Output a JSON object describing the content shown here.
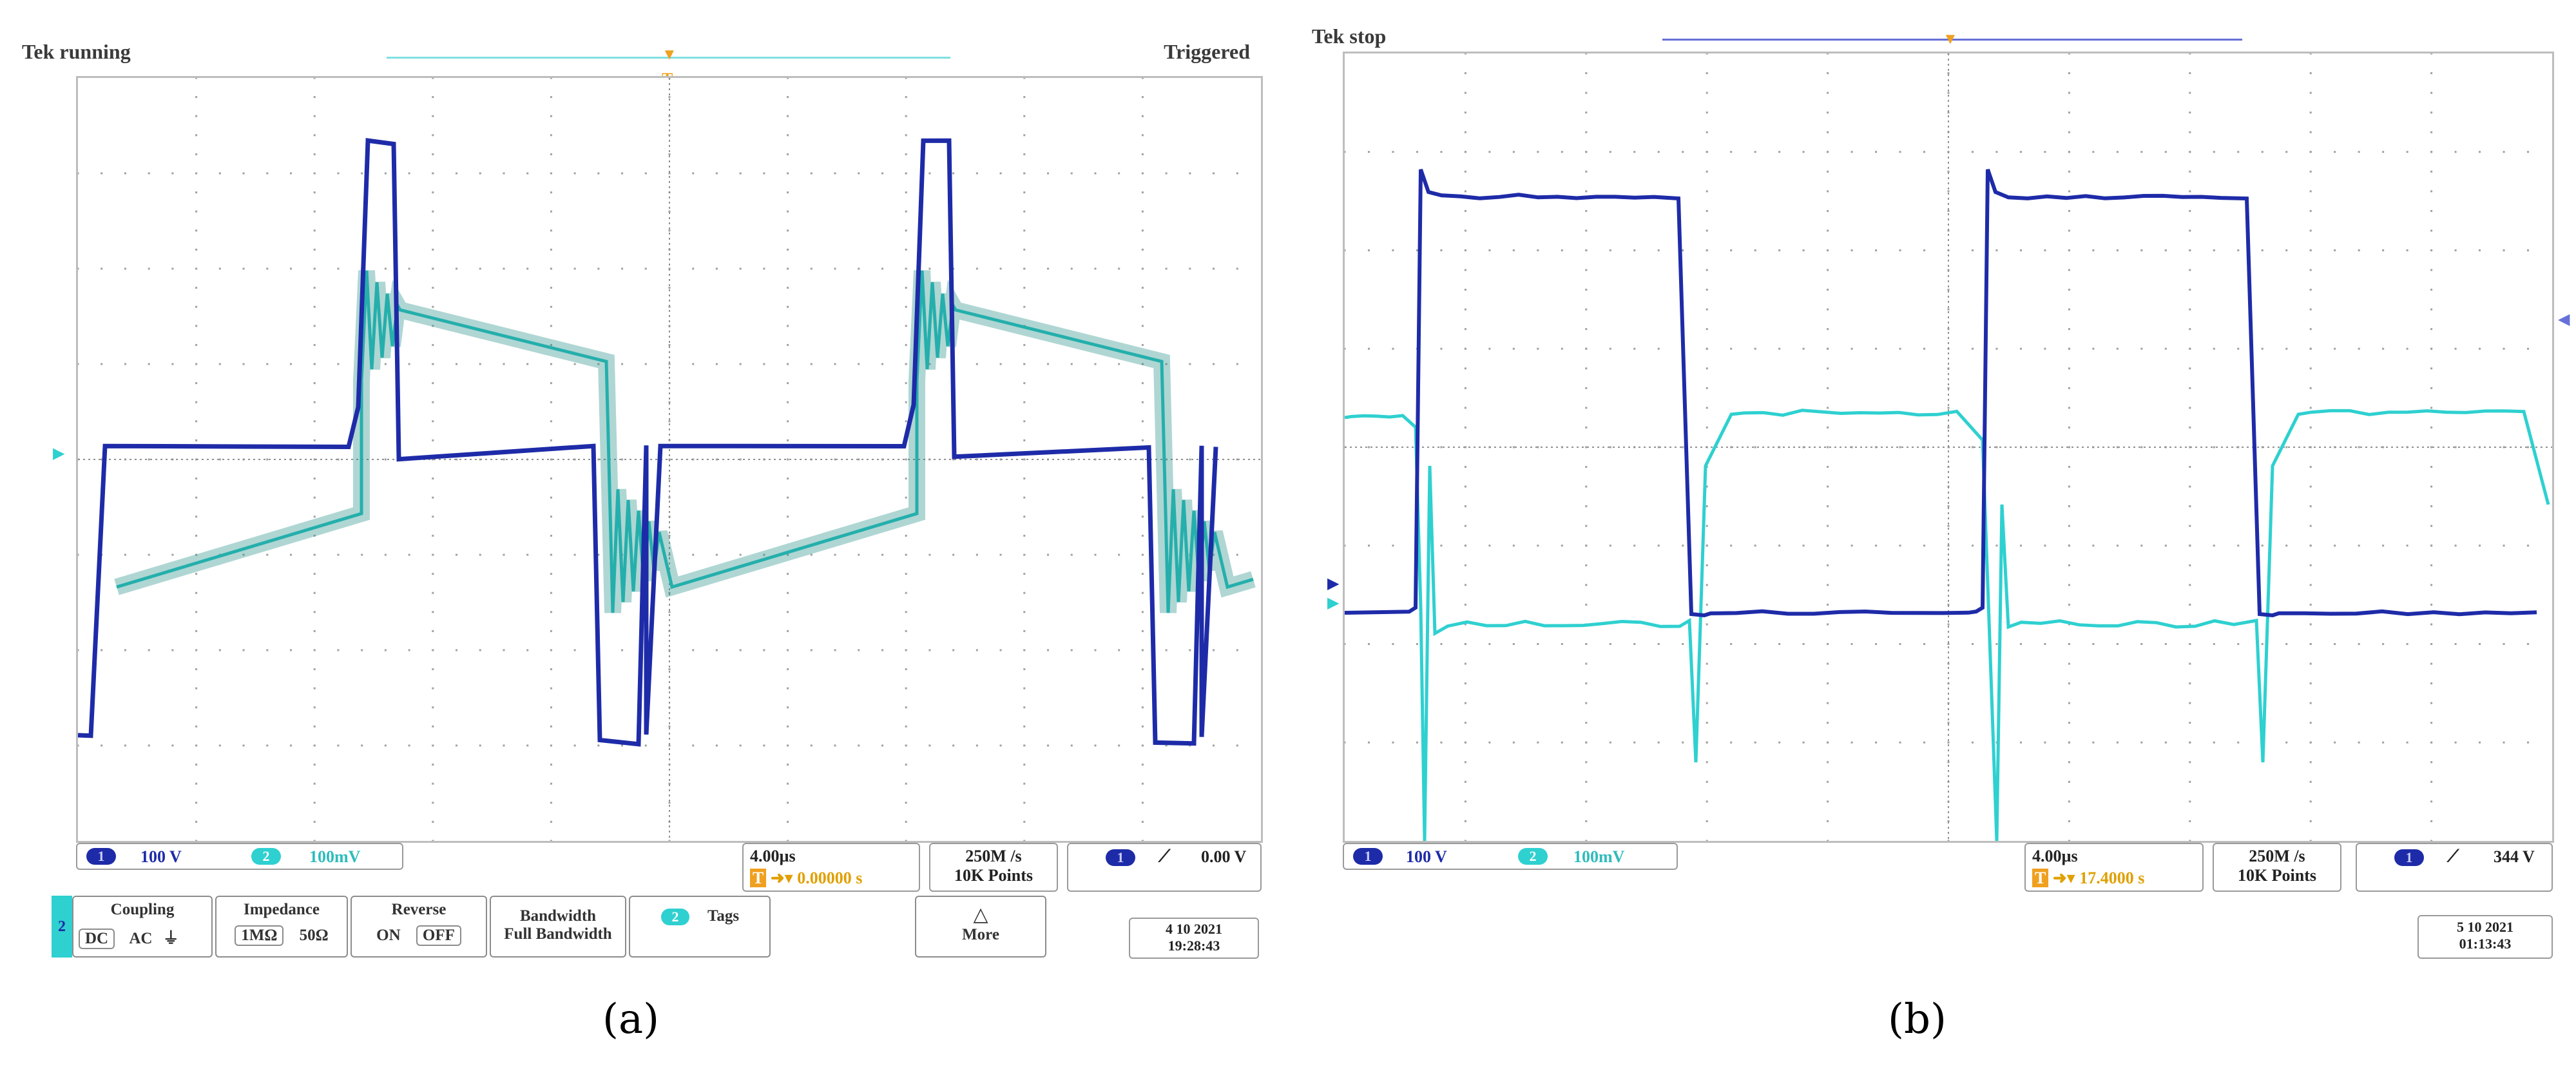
{
  "panel_a": {
    "status_left": "Tek running",
    "status_right": "Triggered",
    "ch1_badge": "1",
    "ch1_scale": "100 V",
    "ch2_badge": "2",
    "ch2_scale": "100mV",
    "time_div": "4.00µs",
    "trigger_pos": "0.00000 s",
    "sample_rate": "250M /s",
    "record_length": "10K Points",
    "trig_badge": "1",
    "trig_level": "0.00 V",
    "date": "4 10  2021",
    "time": "19:28:43",
    "menu_channel": "2",
    "coupling": {
      "title": "Coupling",
      "opt1": "DC",
      "opt2": "AC"
    },
    "impedance": {
      "title": "Impedance",
      "opt1": "1MΩ",
      "opt2": "50Ω"
    },
    "reverse": {
      "title": "Reverse",
      "opt1": "ON",
      "opt2": "OFF"
    },
    "bandwidth": {
      "title": "Bandwidth",
      "value": "Full Bandwidth"
    },
    "tags": {
      "badge": "2",
      "label": "Tags"
    },
    "more": {
      "label": "More"
    },
    "caption": "(a)"
  },
  "panel_b": {
    "status_left": "Tek stop",
    "ch1_badge": "1",
    "ch1_scale": "100 V",
    "ch2_badge": "2",
    "ch2_scale": "100mV",
    "time_div": "4.00µs",
    "trigger_pos": "17.4000 s",
    "sample_rate": "250M /s",
    "record_length": "10K Points",
    "trig_badge": "1",
    "trig_level": "344 V",
    "date": "5 10  2021",
    "time": "01:13:43",
    "caption": "(b)"
  },
  "colors": {
    "ch1": "#1e2ba8",
    "ch2": "#2fd0d0",
    "trigger": "#f0a020",
    "grid": "#9a9a9a"
  },
  "icons": {
    "slope": "rising-edge-icon",
    "more": "triangle-up-icon",
    "trigger_t": "trigger-t-icon"
  }
}
